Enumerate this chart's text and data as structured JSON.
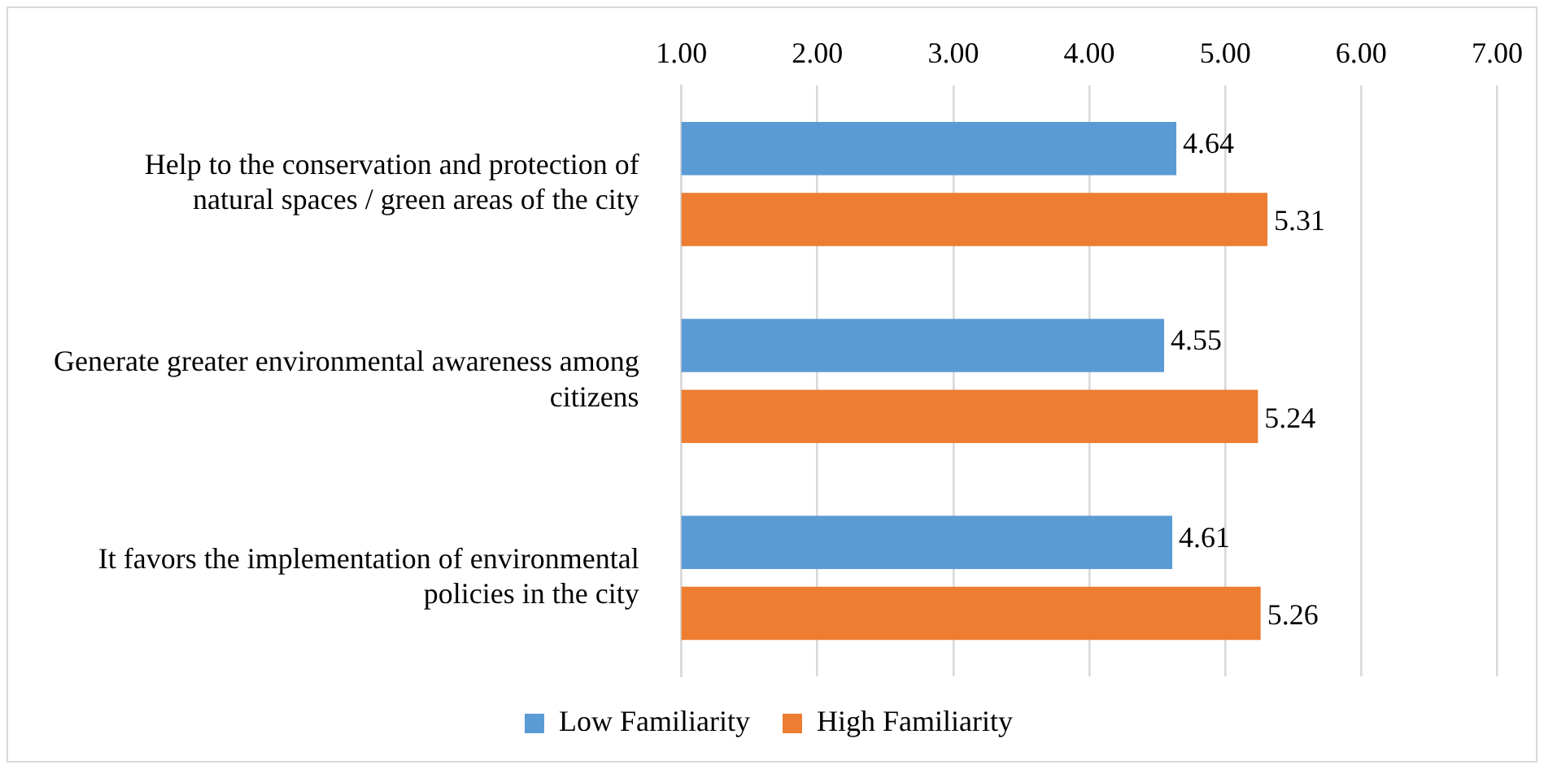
{
  "chart_data": {
    "type": "bar",
    "orientation": "horizontal",
    "categories": [
      "Help to the conservation and protection of natural spaces / green areas of the city",
      "Generate greater environmental awareness among citizens",
      "It favors the implementation of environmental policies in the city"
    ],
    "series": [
      {
        "name": "Low Familiarity",
        "color": "#5b9bd5",
        "values": [
          4.64,
          4.55,
          4.61
        ]
      },
      {
        "name": "High Familiarity",
        "color": "#ed7d31",
        "values": [
          5.31,
          5.24,
          5.26
        ]
      }
    ],
    "xlim": [
      1,
      7
    ],
    "xticks": [
      {
        "value": 1,
        "label": "1.00"
      },
      {
        "value": 2,
        "label": "2.00"
      },
      {
        "value": 3,
        "label": "3.00"
      },
      {
        "value": 4,
        "label": "4.00"
      },
      {
        "value": 5,
        "label": "5.00"
      },
      {
        "value": 6,
        "label": "6.00"
      },
      {
        "value": 7,
        "label": "7.00"
      }
    ],
    "grid": "x",
    "legend": "bottom",
    "data_labels": true
  }
}
